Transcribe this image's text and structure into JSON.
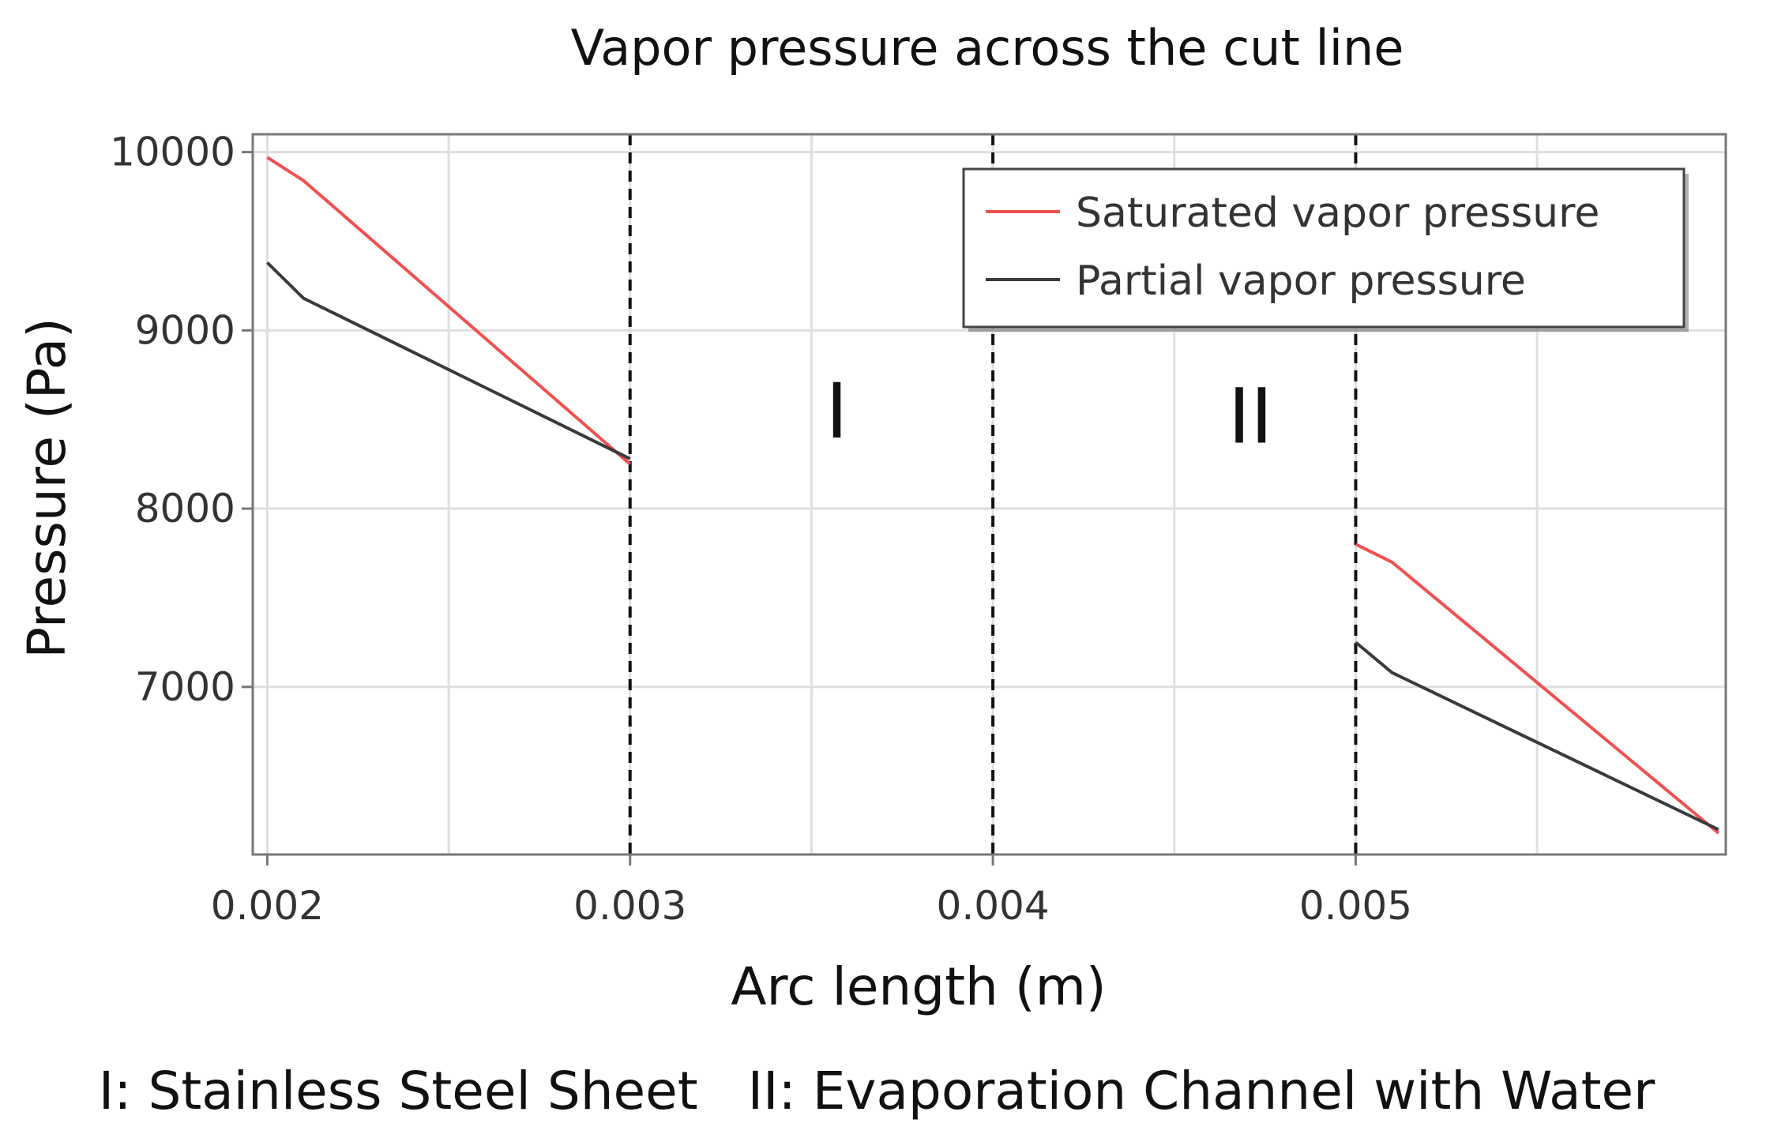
{
  "chart_data": {
    "type": "line",
    "title": "Vapor pressure across the cut line",
    "xlabel": "Arc length (m)",
    "ylabel": "Pressure (Pa)",
    "xlim": [
      0.00196,
      0.00602
    ],
    "ylim": [
      6060,
      10100
    ],
    "grid": true,
    "x_ticks": [
      0.002,
      0.003,
      0.004,
      0.005
    ],
    "x_tick_labels": [
      "0.002",
      "0.003",
      "0.004",
      "0.005"
    ],
    "x_minor_ticks": [
      0.0025,
      0.0035,
      0.0045,
      0.0055
    ],
    "y_ticks": [
      7000,
      8000,
      9000,
      10000
    ],
    "y_tick_labels": [
      "7000",
      "8000",
      "9000",
      "10000"
    ],
    "legend_position": "top-right",
    "series": [
      {
        "name": "Saturated vapor pressure",
        "color": "#f05050",
        "segments": [
          [
            [
              0.002,
              9970
            ],
            [
              0.0021,
              9840
            ],
            [
              0.003,
              8250
            ]
          ],
          [
            [
              0.005,
              7800
            ],
            [
              0.0051,
              7700
            ],
            [
              0.006,
              6180
            ]
          ]
        ]
      },
      {
        "name": "Partial vapor pressure",
        "color": "#3a3a3a",
        "segments": [
          [
            [
              0.002,
              9380
            ],
            [
              0.0021,
              9180
            ],
            [
              0.003,
              8280
            ]
          ],
          [
            [
              0.005,
              7250
            ],
            [
              0.0051,
              7080
            ],
            [
              0.006,
              6200
            ]
          ]
        ]
      }
    ],
    "boundaries": [
      0.003,
      0.004,
      0.005
    ],
    "regions": [
      {
        "label": "I",
        "x": 0.00357,
        "y": 8400
      },
      {
        "label": "II",
        "x": 0.00471,
        "y": 8370
      }
    ]
  },
  "caption": "I: Stainless Steel Sheet   II: Evaporation Channel with Water"
}
